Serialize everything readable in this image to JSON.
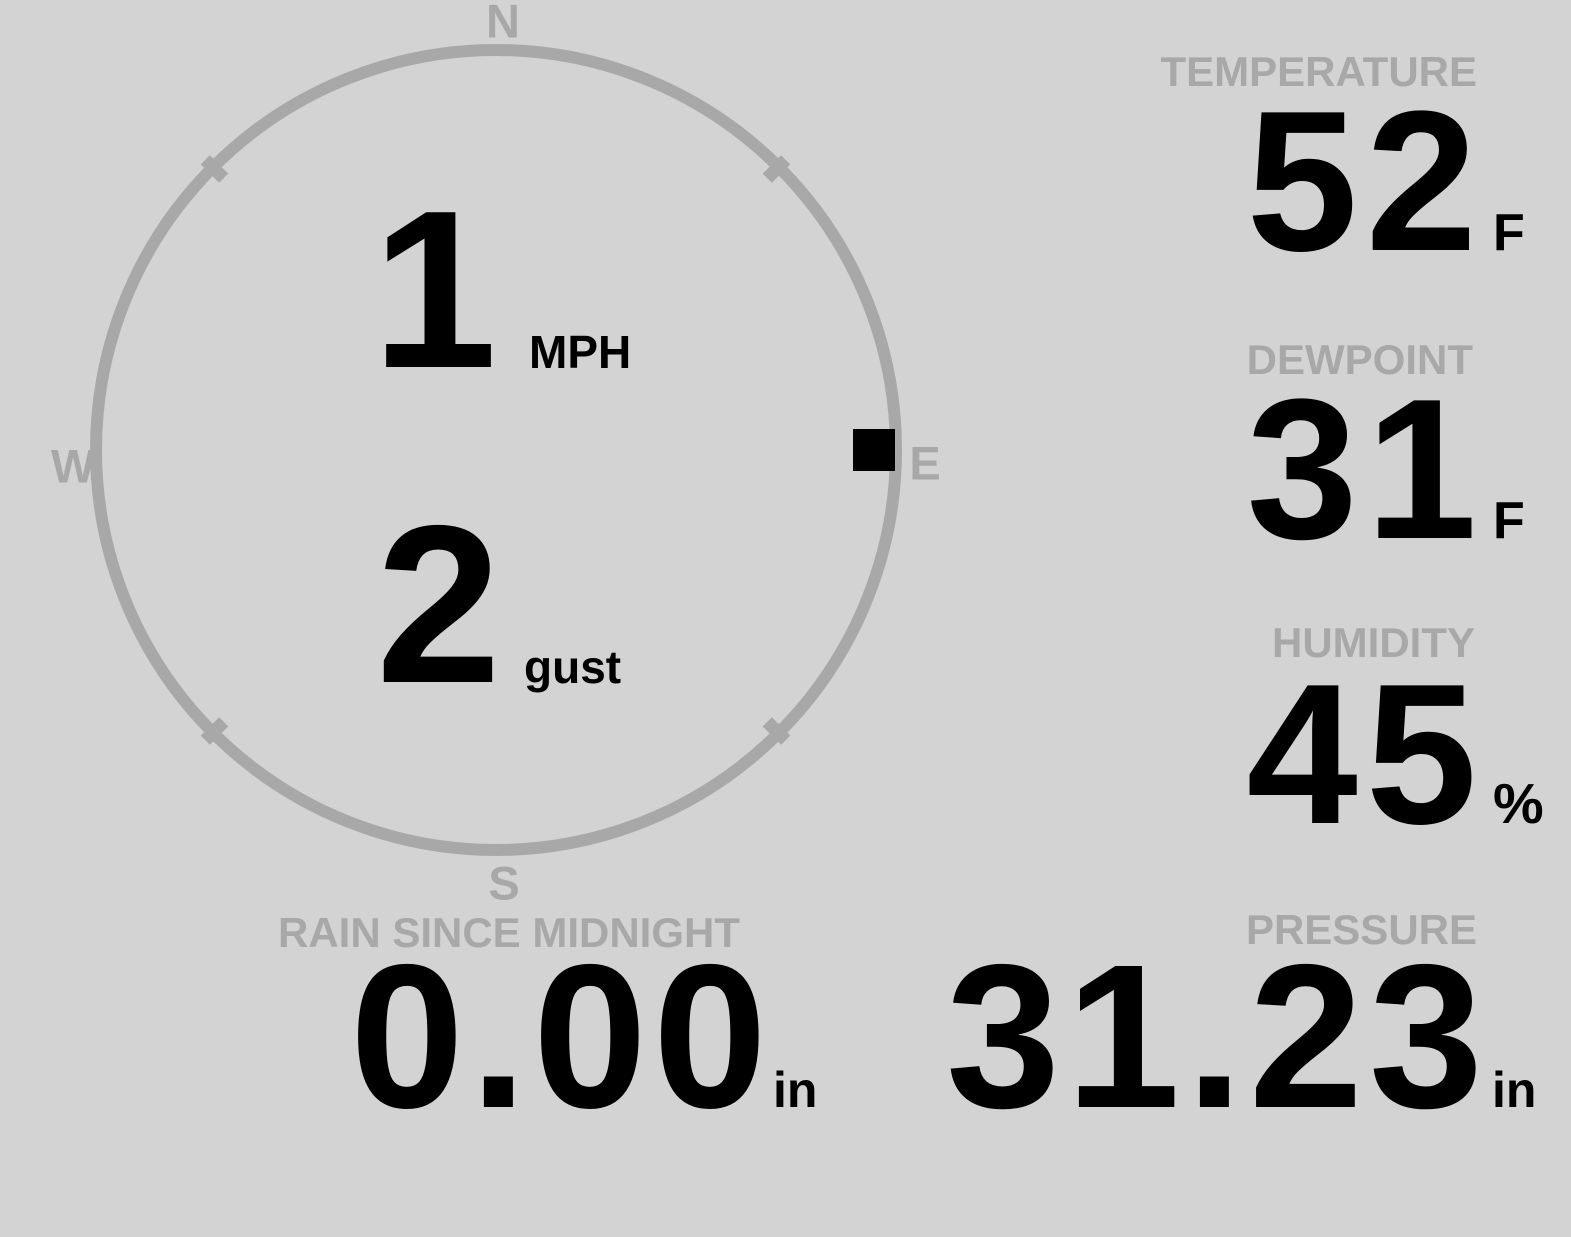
{
  "compass": {
    "cardinals": {
      "north": "N",
      "east": "E",
      "south": "S",
      "west": "W"
    },
    "wind_speed": "1",
    "wind_speed_unit": "MPH",
    "wind_gust": "2",
    "wind_gust_unit": "gust",
    "wind_direction_deg": 90
  },
  "metrics": {
    "temperature": {
      "label": "TEMPERATURE",
      "value": "52",
      "unit": "F"
    },
    "dewpoint": {
      "label": "DEWPOINT",
      "value": "31",
      "unit": "F"
    },
    "humidity": {
      "label": "HUMIDITY",
      "value": "45",
      "unit": "%"
    },
    "rain_since_midnight": {
      "label": "RAIN SINCE MIDNIGHT",
      "value": "0.00",
      "unit": "in"
    },
    "pressure": {
      "label": "PRESSURE",
      "value": "31.23",
      "unit": "in"
    }
  },
  "colors": {
    "background": "#d3d3d3",
    "muted": "#a8a8a8",
    "ink": "#000000"
  }
}
